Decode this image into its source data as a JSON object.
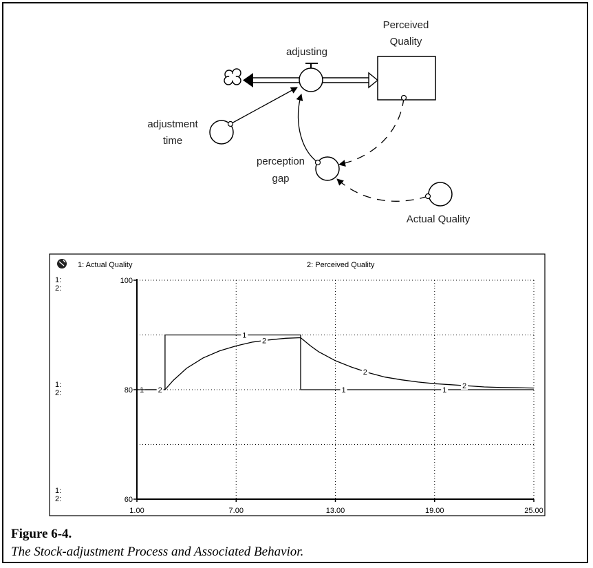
{
  "diagram": {
    "labels": {
      "perceived_quality": [
        "Perceived",
        "Quality"
      ],
      "adjusting": "adjusting",
      "adjustment_time": [
        "adjustment",
        "time"
      ],
      "perception_gap": [
        "perception",
        "gap"
      ],
      "actual_quality": "Actual Quality"
    }
  },
  "chart_data": {
    "type": "line",
    "legend": [
      {
        "number": "1",
        "label": "1: Actual  Quality"
      },
      {
        "number": "2",
        "label": "2: Perceived Quality"
      }
    ],
    "axis_markers": [
      "1:",
      "2:"
    ],
    "x_ticks": [
      "1.00",
      "7.00",
      "13.00",
      "19.00",
      "25.00"
    ],
    "y_ticks": [
      "100",
      "80",
      "60"
    ],
    "xlim": [
      1,
      25
    ],
    "ylim": [
      60,
      100
    ],
    "grid": true,
    "series": [
      {
        "number": "1",
        "points": [
          [
            1,
            80
          ],
          [
            2.7,
            80
          ],
          [
            2.7,
            90
          ],
          [
            10,
            90
          ],
          [
            10.9,
            90
          ],
          [
            10.9,
            80
          ],
          [
            25,
            80
          ]
        ],
        "marker_x": [
          1.3,
          7.5,
          13.5,
          19.6
        ]
      },
      {
        "number": "2",
        "points": [
          [
            1,
            80
          ],
          [
            2.7,
            80
          ],
          [
            3.2,
            81.7
          ],
          [
            4,
            83.9
          ],
          [
            5,
            85.8
          ],
          [
            6,
            87.1
          ],
          [
            7,
            88
          ],
          [
            8,
            88.7
          ],
          [
            9,
            89.1
          ],
          [
            10,
            89.4
          ],
          [
            10.9,
            89.5
          ],
          [
            11.5,
            88
          ],
          [
            12,
            86.9
          ],
          [
            13,
            85.3
          ],
          [
            14,
            84.1
          ],
          [
            15,
            83.1
          ],
          [
            16,
            82.3
          ],
          [
            17,
            81.8
          ],
          [
            18,
            81.4
          ],
          [
            19,
            81.1
          ],
          [
            20,
            80.9
          ],
          [
            21,
            80.7
          ],
          [
            22,
            80.5
          ],
          [
            23,
            80.4
          ],
          [
            24,
            80.35
          ],
          [
            25,
            80.3
          ]
        ],
        "marker_x": [
          2.4,
          8.7,
          14.8,
          20.8
        ]
      }
    ]
  },
  "caption": {
    "title": "Figure 6-4.",
    "subtitle": "The Stock-adjustment Process and Associated Behavior."
  }
}
